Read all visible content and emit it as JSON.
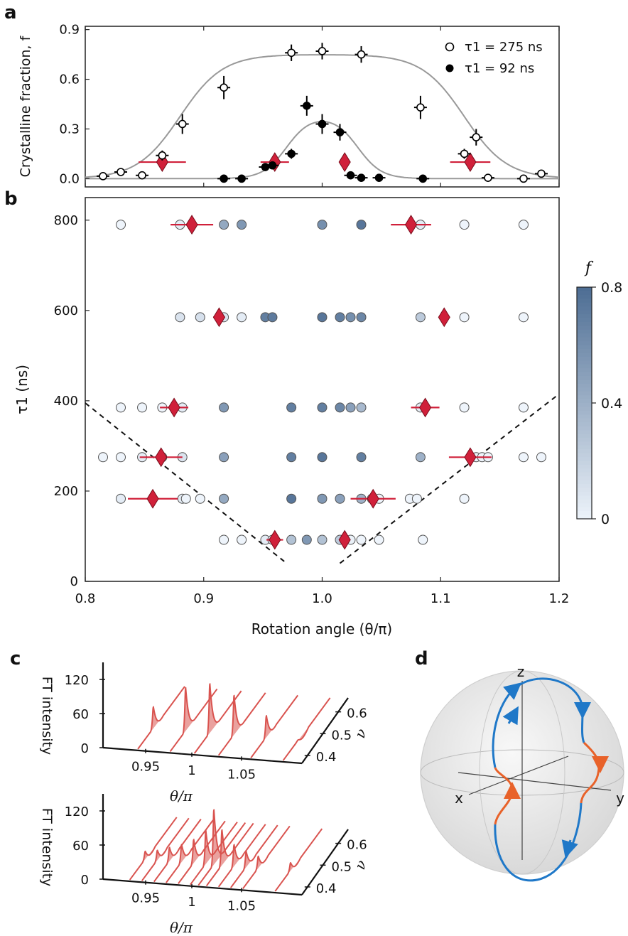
{
  "panel_labels": {
    "a": "a",
    "b": "b",
    "c": "c",
    "d": "d"
  },
  "colors": {
    "open_marker": "#ffffff",
    "filled_marker": "#000000",
    "fit_line": "#999999",
    "threshold": "#d0203a",
    "colormap_low": "#eef4fb",
    "colormap_high": "#4e6e94",
    "waterfall": "#d9534f",
    "sphere_blue": "#1f78c8",
    "sphere_orange": "#e8622a"
  },
  "chart_data": [
    {
      "panel": "a",
      "type": "scatter",
      "ylabel": "Crystalline fraction, f",
      "xlim": [
        0.8,
        1.2
      ],
      "ylim": [
        -0.05,
        0.92
      ],
      "yticks": [
        0.0,
        0.3,
        0.6,
        0.9
      ],
      "ytick_labels": [
        "0.0",
        "0.3",
        "0.6",
        "0.9"
      ],
      "legend_position": "top-right",
      "series": [
        {
          "name": "τ1 = 275 ns",
          "marker": "open-circle",
          "x": [
            0.815,
            0.83,
            0.848,
            0.865,
            0.882,
            0.917,
            0.974,
            1.0,
            1.033,
            1.083,
            1.12,
            1.13,
            1.14,
            1.17,
            1.185
          ],
          "y": [
            0.015,
            0.04,
            0.02,
            0.14,
            0.33,
            0.55,
            0.76,
            0.77,
            0.75,
            0.43,
            0.15,
            0.25,
            0.005,
            0.0,
            0.03
          ],
          "yerr": [
            0.01,
            0.015,
            0.01,
            0.03,
            0.06,
            0.07,
            0.05,
            0.05,
            0.05,
            0.07,
            0.03,
            0.05,
            0.01,
            0.0,
            0.015
          ]
        },
        {
          "name": "τ1 = 92 ns",
          "marker": "filled-circle",
          "x": [
            0.917,
            0.932,
            0.952,
            0.958,
            0.974,
            0.987,
            1.0,
            1.015,
            1.024,
            1.033,
            1.048,
            1.085
          ],
          "y": [
            0.0,
            0.0,
            0.07,
            0.08,
            0.15,
            0.44,
            0.33,
            0.28,
            0.02,
            0.005,
            0.005,
            0.0
          ],
          "yerr": [
            0.01,
            0.01,
            0.015,
            0.02,
            0.03,
            0.06,
            0.06,
            0.05,
            0.015,
            0.01,
            0.01,
            0.01
          ]
        }
      ],
      "fit_curves": [
        {
          "series": "τ1 = 275 ns",
          "center": 1.0,
          "half_width": 0.12,
          "edge_width": 0.018,
          "amplitude": 0.75
        },
        {
          "series": "τ1 = 92 ns",
          "center": 1.0,
          "half_width": 0.03,
          "edge_width": 0.01,
          "amplitude": 0.38
        }
      ],
      "thresholds": [
        {
          "x": 0.865,
          "y": 0.1,
          "xerr": 0.02
        },
        {
          "x": 0.96,
          "y": 0.1,
          "xerr": 0.012
        },
        {
          "x": 1.019,
          "y": 0.1,
          "xerr": 0.004
        },
        {
          "x": 1.125,
          "y": 0.1,
          "xerr": 0.017
        }
      ]
    },
    {
      "panel": "b",
      "type": "scatter",
      "xlabel": "Rotation angle (θ/π)",
      "ylabel": "τ1 (ns)",
      "xlim": [
        0.8,
        1.2
      ],
      "ylim": [
        0,
        850
      ],
      "xticks": [
        0.8,
        0.9,
        1.0,
        1.1,
        1.2
      ],
      "xtick_labels": [
        "0.8",
        "0.9",
        "1.0",
        "1.1",
        "1.2"
      ],
      "yticks": [
        0,
        200,
        400,
        600,
        800
      ],
      "ytick_labels": [
        "0",
        "200",
        "400",
        "600",
        "800"
      ],
      "colorbar": {
        "label": "f",
        "min": 0,
        "max": 0.8,
        "ticks": [
          0,
          0.4,
          0.8
        ],
        "tick_labels": [
          "0",
          "0.4",
          "0.8"
        ]
      },
      "rows": [
        {
          "tau": 790,
          "points": [
            [
              0.83,
              0
            ],
            [
              0.88,
              0.05
            ],
            [
              0.917,
              0.45
            ],
            [
              0.932,
              0.55
            ],
            [
              1.0,
              0.6
            ],
            [
              1.033,
              0.75
            ],
            [
              1.083,
              0.05
            ],
            [
              1.12,
              0
            ],
            [
              1.17,
              0
            ]
          ]
        },
        {
          "tau": 585,
          "points": [
            [
              0.88,
              0.1
            ],
            [
              0.897,
              0.12
            ],
            [
              0.917,
              0.1
            ],
            [
              0.932,
              0.05
            ],
            [
              0.952,
              0.7
            ],
            [
              0.958,
              0.72
            ],
            [
              1.0,
              0.75
            ],
            [
              1.015,
              0.7
            ],
            [
              1.024,
              0.6
            ],
            [
              1.033,
              0.65
            ],
            [
              1.083,
              0.25
            ],
            [
              1.12,
              0
            ],
            [
              1.17,
              0
            ]
          ]
        },
        {
          "tau": 385,
          "points": [
            [
              0.83,
              0
            ],
            [
              0.848,
              0
            ],
            [
              0.865,
              0
            ],
            [
              0.882,
              0.05
            ],
            [
              0.917,
              0.55
            ],
            [
              0.974,
              0.7
            ],
            [
              1.0,
              0.7
            ],
            [
              1.015,
              0.65
            ],
            [
              1.024,
              0.5
            ],
            [
              1.033,
              0.35
            ],
            [
              1.083,
              0.05
            ],
            [
              1.12,
              0
            ],
            [
              1.17,
              0
            ]
          ]
        },
        {
          "tau": 275,
          "points": [
            [
              0.815,
              0
            ],
            [
              0.83,
              0
            ],
            [
              0.848,
              0.05
            ],
            [
              0.865,
              0.1
            ],
            [
              0.882,
              0.1
            ],
            [
              0.917,
              0.5
            ],
            [
              0.974,
              0.7
            ],
            [
              1.0,
              0.75
            ],
            [
              1.033,
              0.7
            ],
            [
              1.083,
              0.4
            ],
            [
              1.13,
              0.02
            ],
            [
              1.135,
              0
            ],
            [
              1.14,
              0
            ],
            [
              1.17,
              0
            ],
            [
              1.185,
              0
            ]
          ]
        },
        {
          "tau": 183,
          "points": [
            [
              0.83,
              0.05
            ],
            [
              0.882,
              0.05
            ],
            [
              0.885,
              0
            ],
            [
              0.897,
              0
            ],
            [
              0.917,
              0.45
            ],
            [
              0.974,
              0.75
            ],
            [
              1.0,
              0.55
            ],
            [
              1.015,
              0.5
            ],
            [
              1.033,
              0.4
            ],
            [
              1.042,
              0.1
            ],
            [
              1.048,
              0
            ],
            [
              1.074,
              0
            ],
            [
              1.08,
              0
            ],
            [
              1.12,
              0
            ]
          ]
        },
        {
          "tau": 92,
          "points": [
            [
              0.917,
              0
            ],
            [
              0.932,
              0
            ],
            [
              0.952,
              0.05
            ],
            [
              0.958,
              0.1
            ],
            [
              0.974,
              0.3
            ],
            [
              0.987,
              0.55
            ],
            [
              1.0,
              0.3
            ],
            [
              1.015,
              0.25
            ],
            [
              1.024,
              0.02
            ],
            [
              1.033,
              0
            ],
            [
              1.048,
              0
            ],
            [
              1.085,
              0
            ]
          ]
        }
      ],
      "thresholds": [
        {
          "x": 0.89,
          "y": 790,
          "xerr": 0.018
        },
        {
          "x": 1.075,
          "y": 790,
          "xerr": 0.017
        },
        {
          "x": 0.913,
          "y": 585,
          "xerr": 0.005
        },
        {
          "x": 1.103,
          "y": 585,
          "xerr": 0.004
        },
        {
          "x": 0.875,
          "y": 385,
          "xerr": 0.012
        },
        {
          "x": 1.087,
          "y": 385,
          "xerr": 0.012
        },
        {
          "x": 0.864,
          "y": 275,
          "xerr": 0.018
        },
        {
          "x": 1.125,
          "y": 275,
          "xerr": 0.018
        },
        {
          "x": 0.857,
          "y": 183,
          "xerr": 0.021
        },
        {
          "x": 1.043,
          "y": 183,
          "xerr": 0.019
        },
        {
          "x": 0.96,
          "y": 92,
          "xerr": 0.007
        },
        {
          "x": 1.019,
          "y": 92,
          "xerr": 0.003
        }
      ],
      "dashed_lines": [
        {
          "points": [
            [
              0.8,
              395
            ],
            [
              0.97,
              40
            ]
          ]
        },
        {
          "points": [
            [
              1.015,
              40
            ],
            [
              1.2,
              415
            ]
          ]
        }
      ]
    },
    {
      "panel": "c",
      "type": "area",
      "xlabel": "θ/π",
      "ylabel": "FT intensity",
      "zlabel": "ν",
      "xtick_labels": [
        "0.95",
        "1",
        "1.05"
      ],
      "ytick_labels": [
        "0",
        "60",
        "120"
      ],
      "ztick_labels": [
        "0.4",
        "0.5",
        "0.6"
      ],
      "subplots": [
        {
          "slices": [
            {
              "theta": 0.93,
              "peak_nu": 0.5,
              "height": 55
            },
            {
              "theta": 0.97,
              "peak_nu": 0.5,
              "height": 110
            },
            {
              "theta": 1.0,
              "peak_nu": 0.5,
              "height": 125
            },
            {
              "theta": 1.03,
              "peak_nu": 0.5,
              "height": 100
            },
            {
              "theta": 1.07,
              "peak_nu": 0.5,
              "height": 55
            },
            {
              "theta": 1.11,
              "peak_nu": 0.5,
              "height": 0
            }
          ]
        },
        {
          "slices": [
            {
              "theta": 0.92,
              "peak_nu": 0.5,
              "height": 20
            },
            {
              "theta": 0.935,
              "peak_nu": 0.5,
              "height": 25
            },
            {
              "theta": 0.95,
              "peak_nu": 0.5,
              "height": 35
            },
            {
              "theta": 0.965,
              "peak_nu": 0.5,
              "height": 45
            },
            {
              "theta": 0.98,
              "peak_nu": 0.5,
              "height": 60
            },
            {
              "theta": 0.995,
              "peak_nu": 0.5,
              "height": 85
            },
            {
              "theta": 1.005,
              "peak_nu": 0.5,
              "height": 140
            },
            {
              "theta": 1.015,
              "peak_nu": 0.5,
              "height": 90
            },
            {
              "theta": 1.03,
              "peak_nu": 0.5,
              "height": 55
            },
            {
              "theta": 1.045,
              "peak_nu": 0.5,
              "height": 40
            },
            {
              "theta": 1.06,
              "peak_nu": 0.5,
              "height": 30
            },
            {
              "theta": 1.1,
              "peak_nu": 0.5,
              "height": 20
            }
          ]
        }
      ]
    },
    {
      "panel": "d",
      "type": "diagram",
      "axis_labels": {
        "z": "z",
        "x": "x",
        "y": "y"
      }
    }
  ]
}
